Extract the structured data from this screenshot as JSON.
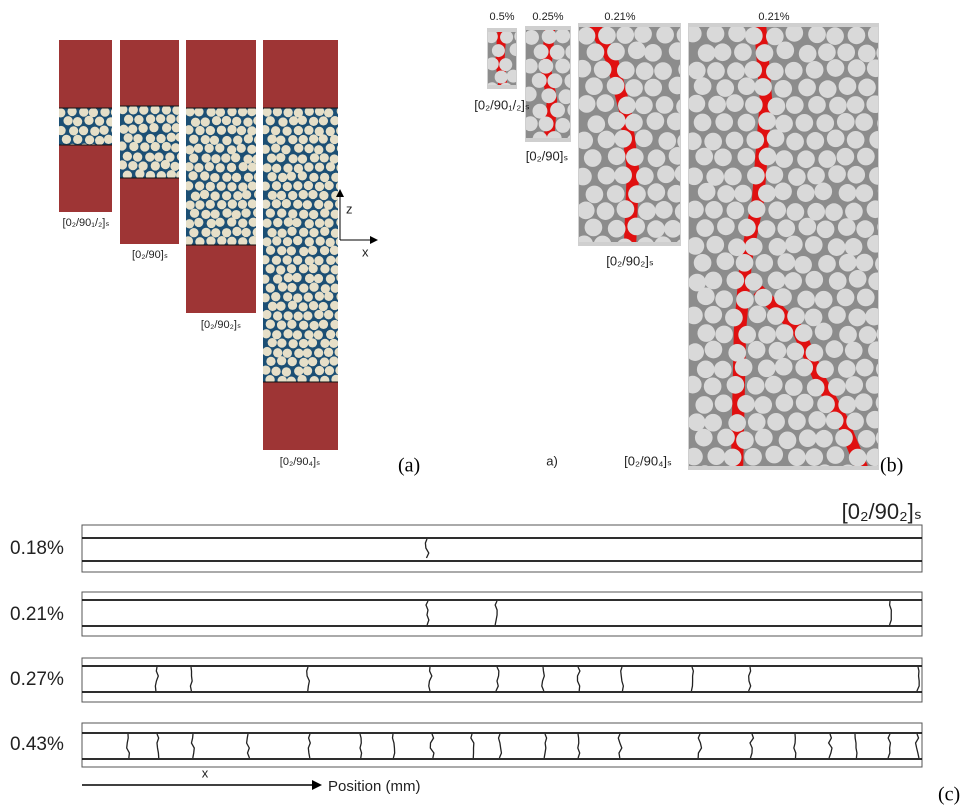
{
  "panel_a": {
    "laminates": [
      "[0₂/90₁/₂]ₛ",
      "[0₂/90]ₛ",
      "[0₂/90₂]ₛ",
      "[0₂/90₄]ₛ"
    ],
    "axis_z": "z",
    "axis_x": "x",
    "label": "(a)"
  },
  "panel_b": {
    "strains": [
      "0.5%",
      "0.25%",
      "0.21%",
      "0.21%"
    ],
    "laminates": [
      "[0₂/90₁/₂]ₛ",
      "[0₂/90]ₛ",
      "[0₂/90₂]ₛ",
      "[0₂/90₄]ₛ"
    ],
    "sublabel": "a)",
    "label": "(b)"
  },
  "panel_c": {
    "title": "[0₂/90₂]ₛ",
    "strains": [
      "0.18%",
      "0.21%",
      "0.27%",
      "0.43%"
    ],
    "axis_x": "x",
    "axis_label": "Position (mm)",
    "label": "(c)"
  }
}
